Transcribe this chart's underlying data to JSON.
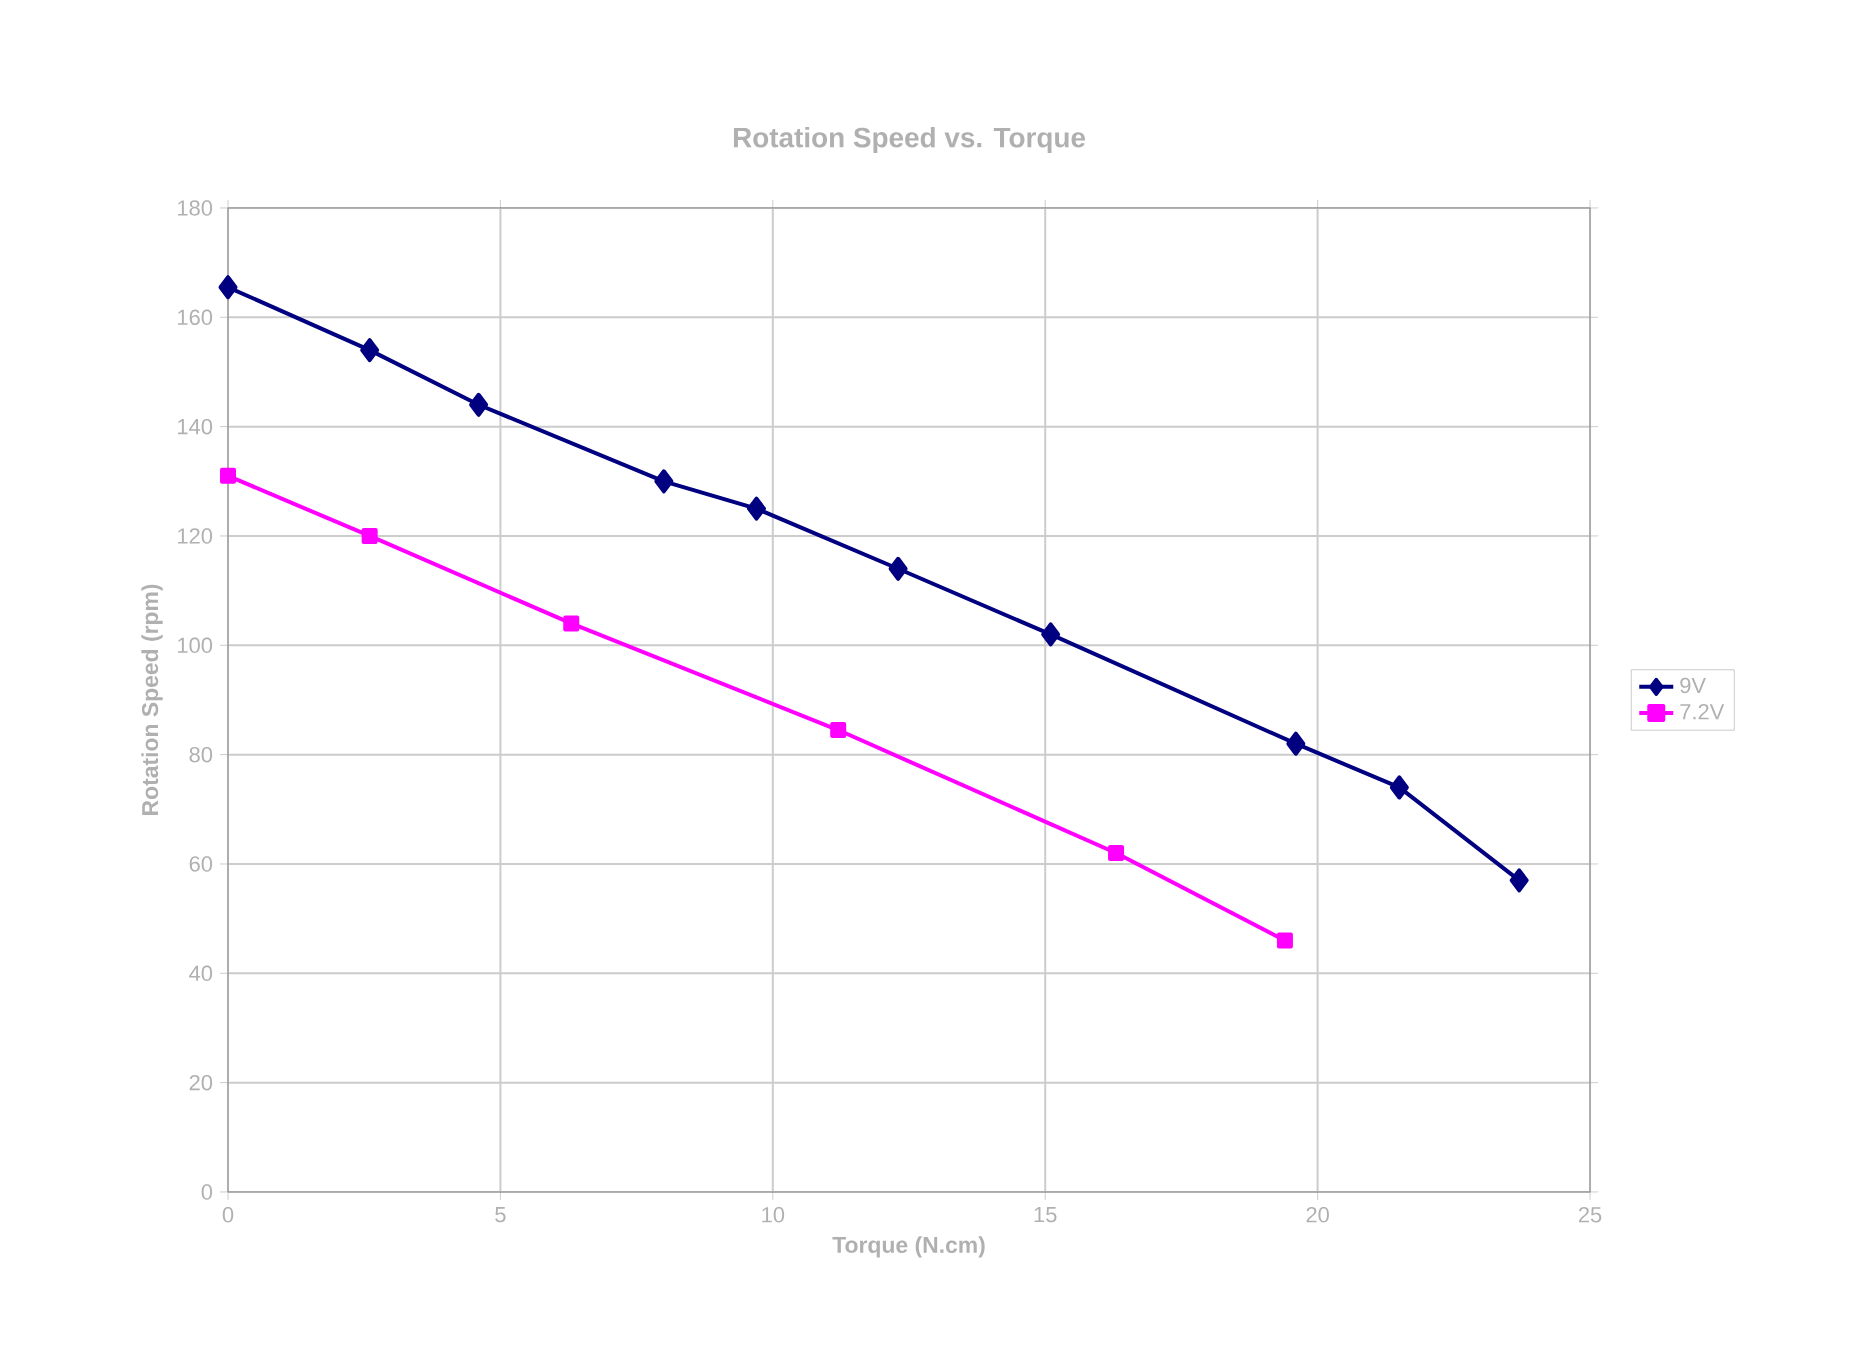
{
  "chart_data": {
    "type": "line",
    "title": "Rotation Speed vs. Torque",
    "xlabel": "Torque (N.cm)",
    "ylabel": "Rotation Speed (rpm)",
    "xlim": [
      0,
      25
    ],
    "xticks": [
      0,
      5,
      10,
      15,
      20,
      25
    ],
    "ylim": [
      0,
      180
    ],
    "yticks": [
      0,
      20,
      40,
      60,
      80,
      100,
      120,
      140,
      160,
      180
    ],
    "grid": true,
    "legend": "right",
    "series": [
      {
        "name": "9V",
        "color": "#000080",
        "marker": "diamond",
        "x": [
          0,
          2.6,
          4.6,
          8.0,
          9.7,
          12.3,
          15.1,
          19.6,
          21.5,
          23.7
        ],
        "values": [
          165.5,
          154,
          144,
          130,
          125,
          114,
          102,
          82,
          74,
          57
        ]
      },
      {
        "name": "7.2V",
        "color": "#ff00ff",
        "marker": "square",
        "x": [
          0,
          2.6,
          6.3,
          11.2,
          16.3,
          19.4
        ],
        "values": [
          131,
          120,
          104,
          84.5,
          62,
          46
        ]
      }
    ]
  }
}
